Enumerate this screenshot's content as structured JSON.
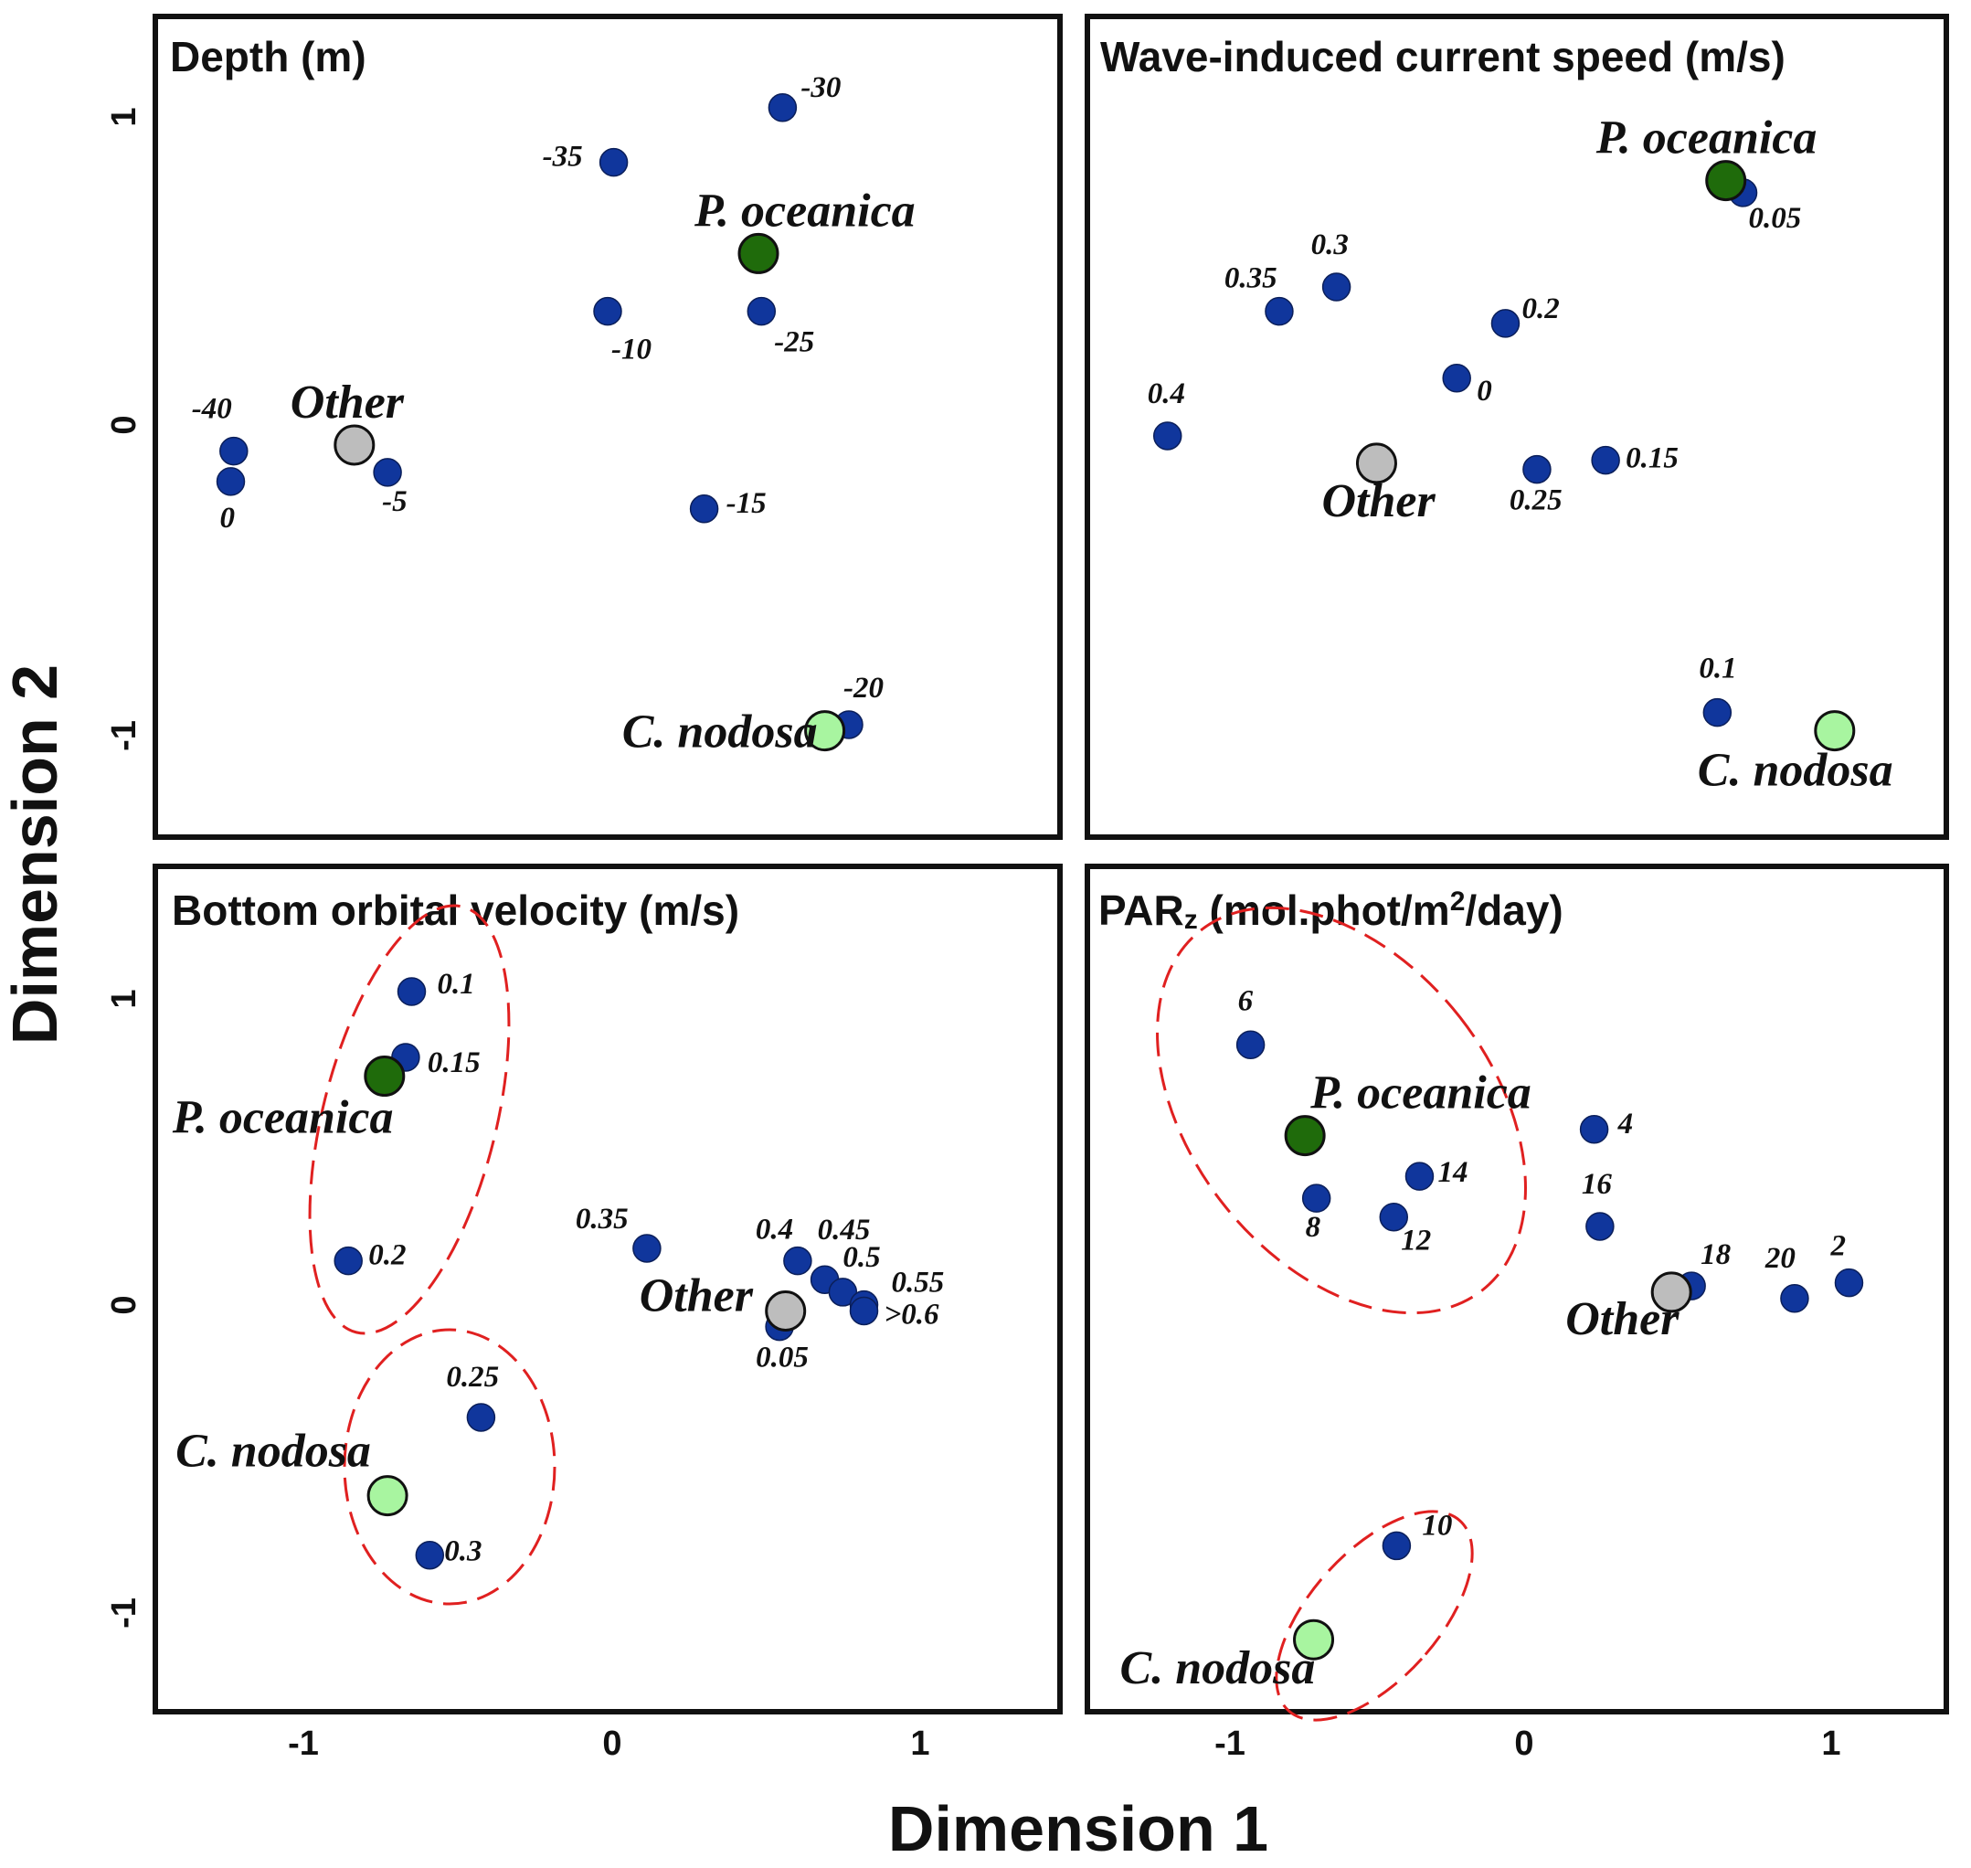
{
  "chart_data": {
    "type": "scatter",
    "xlabel": "Dimension 1",
    "ylabel": "Dimension 2",
    "xlim": [
      -1.5,
      1.5
    ],
    "x_ticks": [
      -1,
      0,
      1
    ],
    "y_ticks": [
      1,
      0,
      -1
    ],
    "colors": {
      "level": "#10369c",
      "p_oceanica": "#1f6b0b",
      "c_nodosa": "#a8f5a0",
      "other": "#bdbdbd",
      "ellipse": "#e02020"
    },
    "panels": [
      {
        "id": "depth",
        "title": "Depth (m)",
        "ylim": [
          -1.35,
          1.35
        ],
        "levels": [
          {
            "label": "-30",
            "x": 0.58,
            "y": 1.05
          },
          {
            "label": "-35",
            "x": 0.02,
            "y": 0.87
          },
          {
            "label": "-10",
            "x": 0.0,
            "y": 0.38
          },
          {
            "label": "-25",
            "x": 0.51,
            "y": 0.38
          },
          {
            "label": "-40",
            "x": -1.24,
            "y": -0.08
          },
          {
            "label": "0",
            "x": -1.25,
            "y": -0.18
          },
          {
            "label": "-5",
            "x": -0.73,
            "y": -0.15
          },
          {
            "label": "-15",
            "x": 0.32,
            "y": -0.27
          },
          {
            "label": "-20",
            "x": 0.8,
            "y": -0.98
          }
        ],
        "species": [
          {
            "label": "P. oceanica",
            "x": 0.5,
            "y": 0.57
          },
          {
            "label": "Other",
            "x": -0.84,
            "y": -0.06
          },
          {
            "label": "C. nodosa",
            "x": 0.72,
            "y": -1.0
          }
        ]
      },
      {
        "id": "current",
        "title": "Wave-induced current speed (m/s)",
        "ylim": [
          -1.35,
          1.35
        ],
        "levels": [
          {
            "label": "0.05",
            "x": 0.79,
            "y": 0.77
          },
          {
            "label": "0.3",
            "x": -0.63,
            "y": 0.46
          },
          {
            "label": "0.35",
            "x": -0.83,
            "y": 0.38
          },
          {
            "label": "0.2",
            "x": -0.04,
            "y": 0.34
          },
          {
            "label": "0",
            "x": -0.21,
            "y": 0.16
          },
          {
            "label": "0.4",
            "x": -1.22,
            "y": -0.03
          },
          {
            "label": "0.25",
            "x": 0.07,
            "y": -0.14
          },
          {
            "label": "0.15",
            "x": 0.31,
            "y": -0.11
          },
          {
            "label": "0.1",
            "x": 0.7,
            "y": -0.94
          }
        ],
        "species": [
          {
            "label": "P. oceanica",
            "x": 0.73,
            "y": 0.81
          },
          {
            "label": "Other",
            "x": -0.49,
            "y": -0.12
          },
          {
            "label": "C. nodosa",
            "x": 1.11,
            "y": -1.0
          }
        ]
      },
      {
        "id": "orbital",
        "title": "Bottom orbital velocity (m/s)",
        "ylim": [
          -1.35,
          1.35
        ],
        "levels": [
          {
            "label": "0.1",
            "x": -0.65,
            "y": 0.95
          },
          {
            "label": "0.15",
            "x": -0.67,
            "y": 0.74
          },
          {
            "label": "0.2",
            "x": -0.86,
            "y": 0.09
          },
          {
            "label": "0.35",
            "x": 0.13,
            "y": 0.13
          },
          {
            "label": "0.4",
            "x": 0.63,
            "y": 0.09
          },
          {
            "label": "0.45",
            "x": 0.72,
            "y": 0.03
          },
          {
            "label": "0.5",
            "x": 0.78,
            "y": -0.01
          },
          {
            "label": "0.55",
            "x": 0.85,
            "y": -0.05
          },
          {
            "label": ">0.6",
            "x": 0.85,
            "y": -0.07
          },
          {
            "label": "0.05",
            "x": 0.57,
            "y": -0.12
          },
          {
            "label": "0.25",
            "x": -0.42,
            "y": -0.41
          },
          {
            "label": "0.3",
            "x": -0.59,
            "y": -0.85
          }
        ],
        "species": [
          {
            "label": "P. oceanica",
            "x": -0.74,
            "y": 0.68
          },
          {
            "label": "Other",
            "x": 0.59,
            "y": -0.07
          },
          {
            "label": "C. nodosa",
            "x": -0.73,
            "y": -0.66
          }
        ]
      },
      {
        "id": "parz",
        "title_main": "PAR",
        "title_sub": "z",
        "title_rest": " (mol.phot/m",
        "title_sup": "2",
        "title_end": "/day)",
        "ylim": [
          -1.35,
          1.35
        ],
        "levels": [
          {
            "label": "6",
            "x": -0.93,
            "y": 0.78
          },
          {
            "label": "4",
            "x": 0.27,
            "y": 0.51
          },
          {
            "label": "14",
            "x": -0.34,
            "y": 0.36
          },
          {
            "label": "8",
            "x": -0.7,
            "y": 0.29
          },
          {
            "label": "12",
            "x": -0.43,
            "y": 0.23
          },
          {
            "label": "16",
            "x": 0.29,
            "y": 0.2
          },
          {
            "label": "18",
            "x": 0.61,
            "y": 0.01
          },
          {
            "label": "20",
            "x": 0.97,
            "y": -0.03
          },
          {
            "label": "2",
            "x": 1.16,
            "y": 0.02
          },
          {
            "label": "10",
            "x": -0.42,
            "y": -0.82
          }
        ],
        "species": [
          {
            "label": "P. oceanica",
            "x": -0.74,
            "y": 0.49
          },
          {
            "label": "Other",
            "x": 0.54,
            "y": -0.01
          },
          {
            "label": "C. nodosa",
            "x": -0.71,
            "y": -1.12
          }
        ]
      }
    ]
  }
}
